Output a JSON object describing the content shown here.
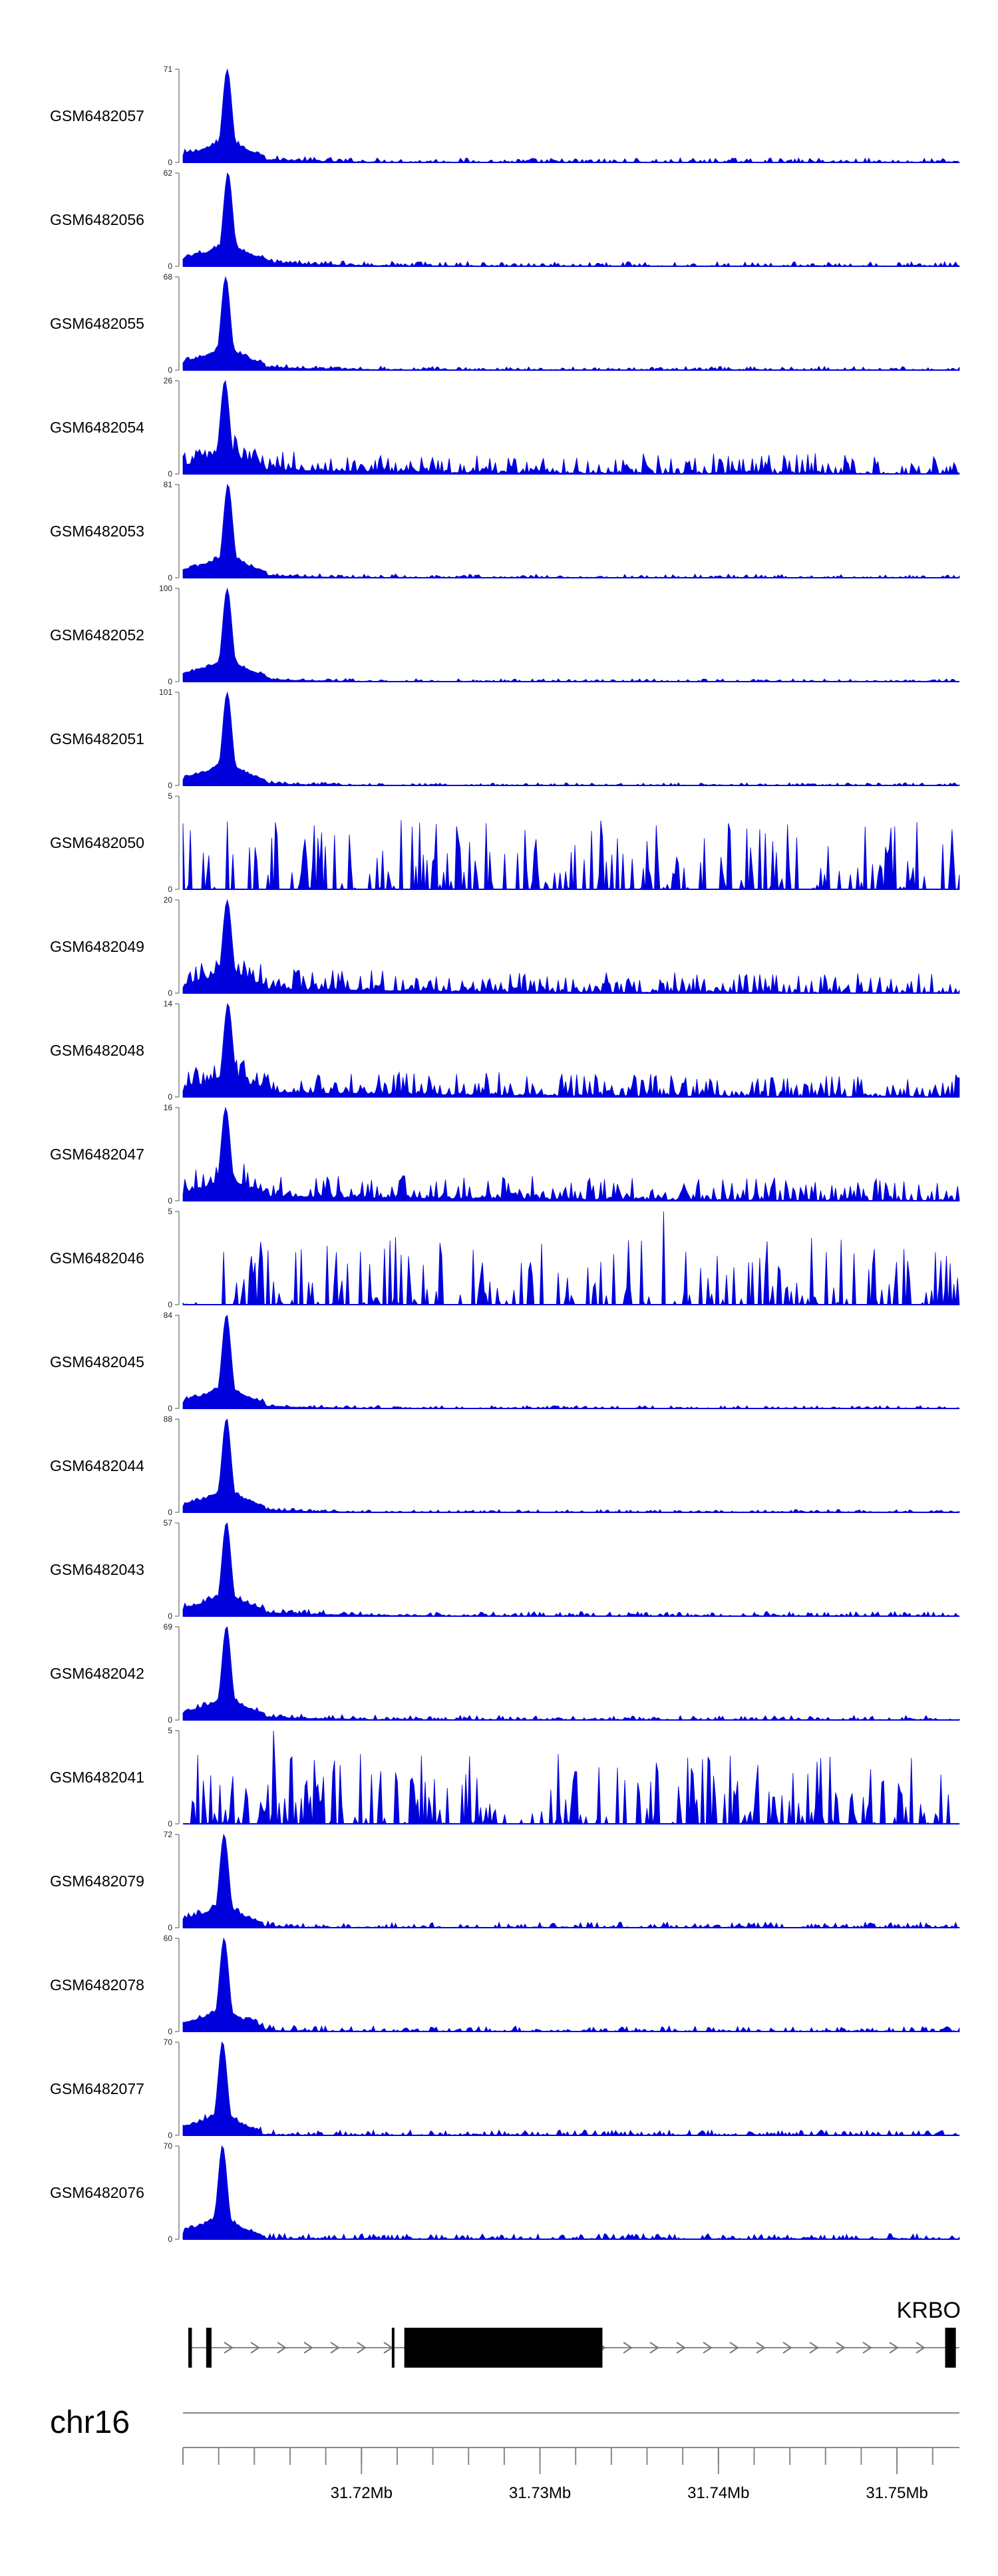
{
  "chart_data": {
    "type": "area",
    "title": "",
    "chromosome": "chr16",
    "x_range_mb": [
      31.71,
      31.7535
    ],
    "color": "#0000dd",
    "tracks": [
      {
        "name": "GSM6482057",
        "ymax": 71,
        "peak_pos": 0.057,
        "peak_height": 71,
        "noise": 0.05,
        "tail_decay": 0.07
      },
      {
        "name": "GSM6482056",
        "ymax": 62,
        "peak_pos": 0.058,
        "peak_height": 62,
        "noise": 0.05,
        "tail_decay": 0.09
      },
      {
        "name": "GSM6482055",
        "ymax": 68,
        "peak_pos": 0.055,
        "peak_height": 68,
        "noise": 0.04,
        "tail_decay": 0.08
      },
      {
        "name": "GSM6482054",
        "ymax": 26,
        "peak_pos": 0.054,
        "peak_height": 26,
        "noise": 0.22,
        "tail_decay": 0.2
      },
      {
        "name": "GSM6482053",
        "ymax": 81,
        "peak_pos": 0.058,
        "peak_height": 81,
        "noise": 0.04,
        "tail_decay": 0.06
      },
      {
        "name": "GSM6482052",
        "ymax": 100,
        "peak_pos": 0.057,
        "peak_height": 100,
        "noise": 0.03,
        "tail_decay": 0.06
      },
      {
        "name": "GSM6482051",
        "ymax": 101,
        "peak_pos": 0.057,
        "peak_height": 101,
        "noise": 0.03,
        "tail_decay": 0.05
      },
      {
        "name": "GSM6482050",
        "ymax": 5,
        "peak_pos": 0.5,
        "peak_height": 2,
        "noise": 0.75,
        "tail_decay": 1.0
      },
      {
        "name": "GSM6482049",
        "ymax": 20,
        "peak_pos": 0.057,
        "peak_height": 20,
        "noise": 0.22,
        "tail_decay": 0.25
      },
      {
        "name": "GSM6482048",
        "ymax": 14,
        "peak_pos": 0.058,
        "peak_height": 14,
        "noise": 0.25,
        "tail_decay": 0.3
      },
      {
        "name": "GSM6482047",
        "ymax": 16,
        "peak_pos": 0.055,
        "peak_height": 16,
        "noise": 0.25,
        "tail_decay": 0.3
      },
      {
        "name": "GSM6482046",
        "ymax": 5,
        "peak_pos": 0.62,
        "peak_height": 5,
        "noise": 0.7,
        "tail_decay": 1.0
      },
      {
        "name": "GSM6482045",
        "ymax": 84,
        "peak_pos": 0.056,
        "peak_height": 84,
        "noise": 0.03,
        "tail_decay": 0.06
      },
      {
        "name": "GSM6482044",
        "ymax": 88,
        "peak_pos": 0.056,
        "peak_height": 88,
        "noise": 0.03,
        "tail_decay": 0.06
      },
      {
        "name": "GSM6482043",
        "ymax": 57,
        "peak_pos": 0.056,
        "peak_height": 57,
        "noise": 0.05,
        "tail_decay": 0.1
      },
      {
        "name": "GSM6482042",
        "ymax": 69,
        "peak_pos": 0.056,
        "peak_height": 69,
        "noise": 0.05,
        "tail_decay": 0.08
      },
      {
        "name": "GSM6482041",
        "ymax": 5,
        "peak_pos": 0.117,
        "peak_height": 5,
        "noise": 0.65,
        "tail_decay": 1.0
      },
      {
        "name": "GSM6482079",
        "ymax": 72,
        "peak_pos": 0.053,
        "peak_height": 72,
        "noise": 0.06,
        "tail_decay": 0.04
      },
      {
        "name": "GSM6482078",
        "ymax": 60,
        "peak_pos": 0.053,
        "peak_height": 60,
        "noise": 0.06,
        "tail_decay": 0.04
      },
      {
        "name": "GSM6482077",
        "ymax": 70,
        "peak_pos": 0.051,
        "peak_height": 70,
        "noise": 0.06,
        "tail_decay": 0.03
      },
      {
        "name": "GSM6482076",
        "ymax": 70,
        "peak_pos": 0.051,
        "peak_height": 70,
        "noise": 0.06,
        "tail_decay": 0.03
      }
    ],
    "gene": {
      "name": "KRBO",
      "strand": "+",
      "start_mb": 31.7103,
      "end_mb": 31.7535,
      "exons_mb": [
        31.7103,
        31.7105,
        31.7113,
        31.7116,
        31.7217,
        31.7218,
        31.7224,
        31.7335,
        31.7527,
        31.7533
      ]
    },
    "x_ticks": [
      31.72,
      31.73,
      31.74,
      31.75
    ],
    "x_tick_labels": [
      "31.72Mb",
      "31.73Mb",
      "31.74Mb",
      "31.75Mb"
    ],
    "minor_tick_step_mb": 0.002,
    "xlabel": ""
  }
}
